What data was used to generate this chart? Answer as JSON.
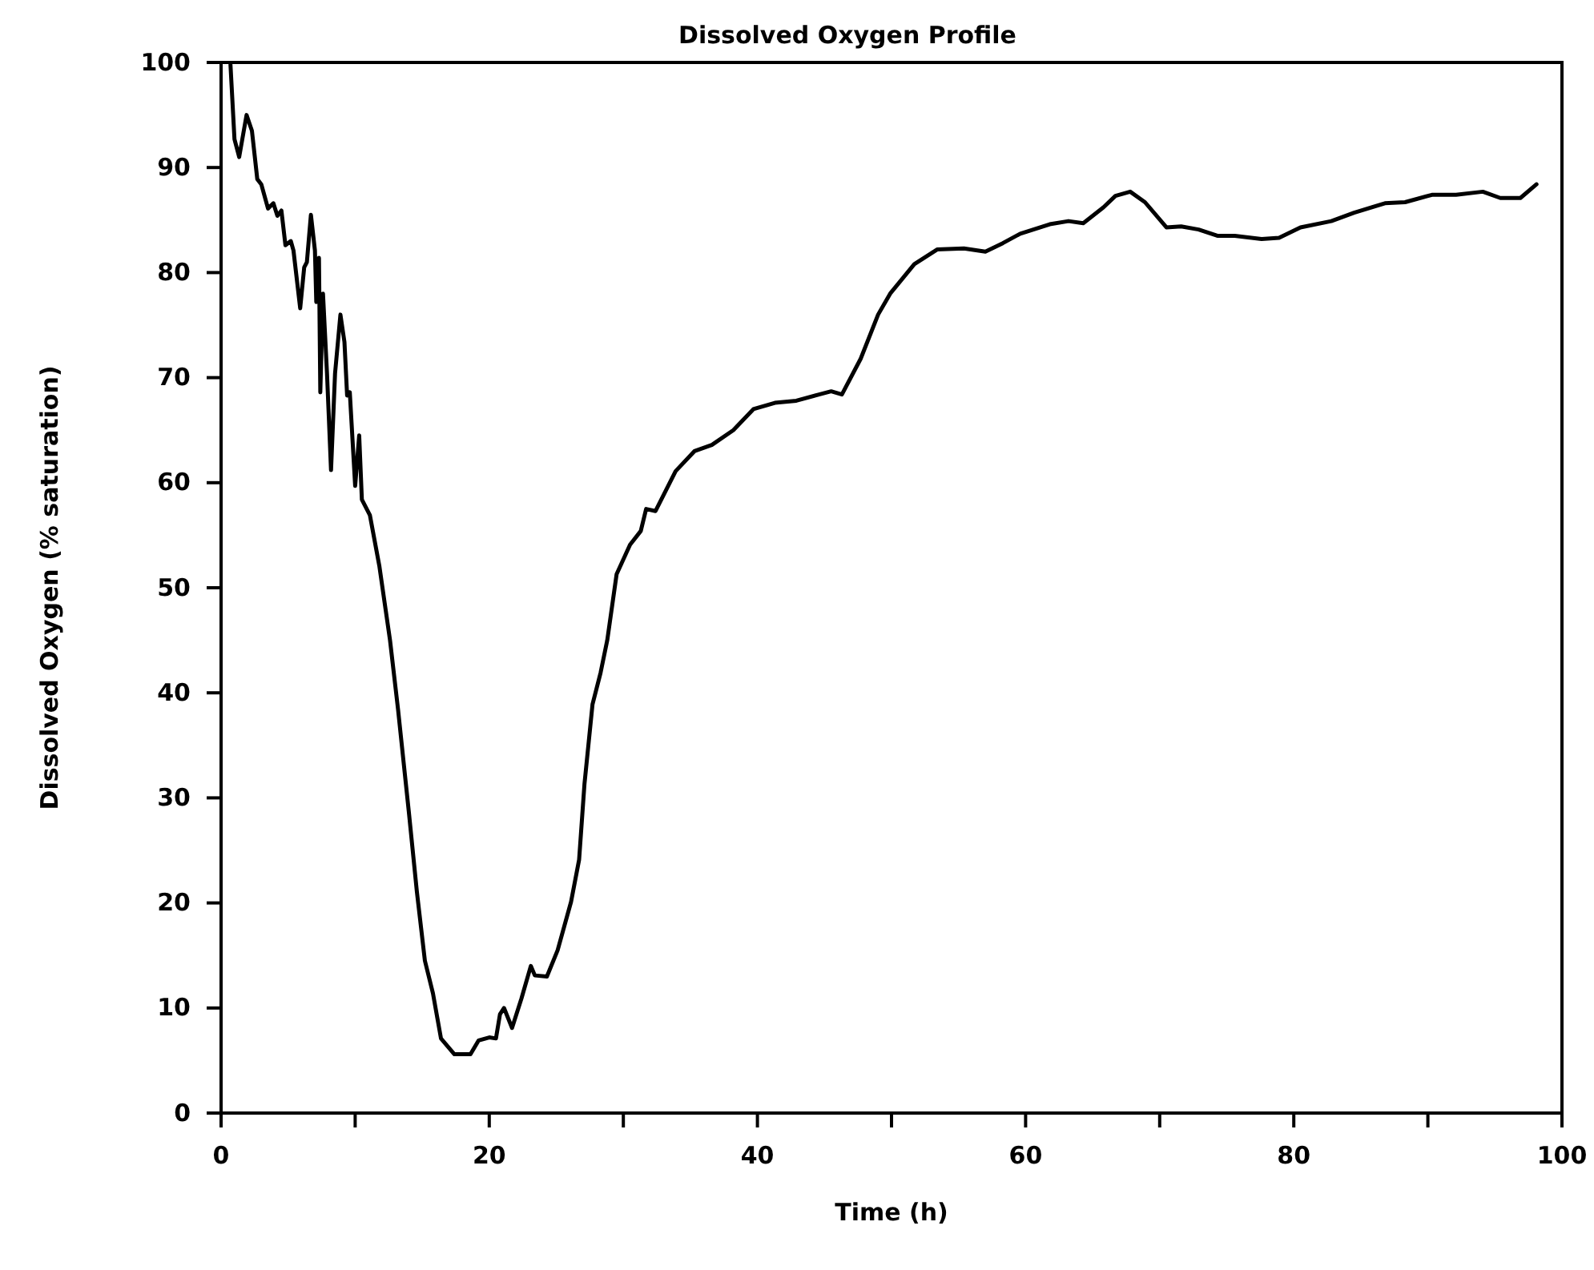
{
  "chart_data": {
    "type": "line",
    "title": "Dissolved Oxygen Profile",
    "xlabel": "Time (h)",
    "ylabel": "Dissolved Oxygen (% saturation)",
    "xlim": [
      0,
      100
    ],
    "xticks": [
      0,
      {
        "value": 10,
        "label": null
      },
      20,
      {
        "value": 30,
        "label": null
      },
      40,
      {
        "value": 50,
        "label": null
      },
      60,
      {
        "value": 70,
        "label": null
      },
      80,
      {
        "value": 90,
        "label": null
      },
      100
    ],
    "ylim": [
      0,
      100
    ],
    "yticks": [
      0,
      10,
      20,
      30,
      40,
      50,
      60,
      70,
      80,
      90,
      100
    ],
    "grid": false,
    "legend": false,
    "marker": "none",
    "line_style": "solid",
    "series": [
      {
        "color": "#000000",
        "x": [
          0.7,
          1.0,
          1.35,
          1.9,
          2.3,
          2.7,
          3.0,
          3.5,
          3.9,
          4.2,
          4.5,
          4.8,
          5.2,
          5.4,
          5.9,
          6.2,
          6.4,
          6.7,
          7.0,
          7.1,
          7.3,
          7.4,
          7.6,
          7.9,
          8.2,
          8.5,
          8.9,
          9.2,
          9.4,
          9.6,
          10.0,
          10.3,
          10.5,
          11.1,
          11.8,
          12.6,
          13.2,
          14.0,
          14.6,
          15.2,
          15.8,
          16.4,
          17.4,
          18.6,
          19.2,
          20.0,
          20.5,
          20.8,
          21.1,
          21.7,
          22.4,
          23.1,
          23.4,
          24.3,
          25.1,
          26.1,
          26.7,
          27.1,
          27.7,
          28.3,
          28.8,
          29.5,
          30.5,
          31.3,
          31.7,
          32.4,
          33.9,
          35.3,
          36.6,
          38.2,
          39.7,
          41.3,
          42.9,
          44.6,
          45.5,
          46.3,
          47.7,
          49.0,
          49.9,
          51.7,
          53.4,
          55.4,
          57.0,
          58.3,
          59.6,
          61.8,
          63.2,
          64.3,
          65.8,
          66.7,
          67.8,
          68.9,
          70.5,
          71.6,
          72.9,
          74.3,
          75.6,
          77.6,
          78.9,
          80.5,
          82.8,
          84.5,
          86.8,
          88.3,
          90.3,
          92.1,
          94.1,
          95.4,
          96.9,
          98.1
        ],
        "values": [
          99.8,
          92.7,
          91.0,
          95.0,
          93.5,
          88.9,
          88.4,
          86.1,
          86.6,
          85.4,
          85.9,
          82.6,
          83.0,
          82.1,
          76.6,
          80.5,
          81.0,
          85.5,
          82.1,
          77.2,
          81.4,
          68.6,
          78.0,
          70.4,
          61.2,
          70.4,
          76.0,
          73.4,
          68.3,
          68.6,
          59.7,
          64.5,
          58.4,
          56.9,
          52.1,
          45.0,
          38.4,
          28.7,
          21.1,
          14.5,
          11.4,
          7.1,
          5.6,
          5.6,
          6.9,
          7.2,
          7.1,
          9.4,
          10.0,
          8.1,
          10.9,
          14.0,
          13.1,
          13.0,
          15.5,
          20.1,
          24.1,
          31.3,
          38.9,
          41.9,
          45.0,
          51.3,
          54.1,
          55.4,
          57.5,
          57.3,
          61.1,
          63.0,
          63.6,
          65.0,
          67.0,
          67.6,
          67.8,
          68.4,
          68.7,
          68.4,
          71.8,
          76.0,
          78.0,
          80.8,
          82.2,
          82.3,
          82.0,
          82.8,
          83.7,
          84.6,
          84.9,
          84.7,
          86.2,
          87.3,
          87.7,
          86.7,
          84.3,
          84.4,
          84.1,
          83.5,
          83.5,
          83.2,
          83.3,
          84.3,
          84.9,
          85.7,
          86.6,
          86.7,
          87.4,
          87.4,
          87.7,
          87.1,
          87.1,
          88.4
        ]
      }
    ]
  }
}
